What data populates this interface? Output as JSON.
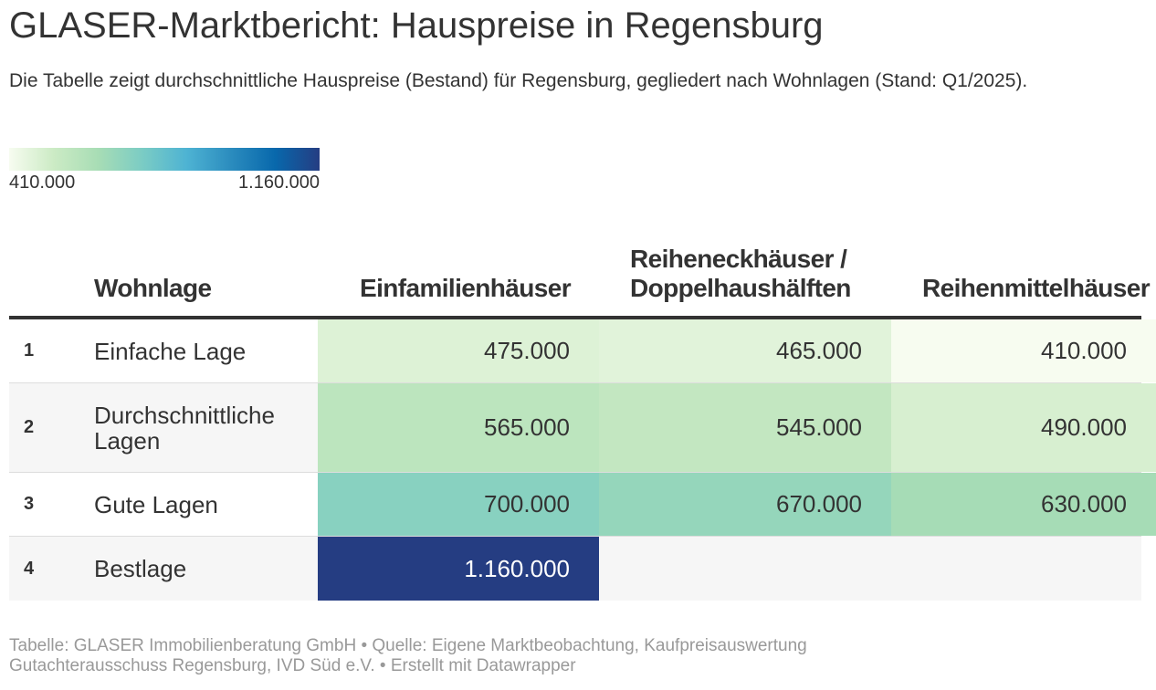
{
  "title": "GLASER-Marktbericht: Hauspreise in Regensburg",
  "subtitle": "Die Tabelle zeigt durchschnittliche Hauspreise (Bestand) für Regensburg, gegliedert nach Wohnlagen (Stand: Q1/2025).",
  "legend": {
    "min_label": "410.000",
    "max_label": "1.160.000",
    "min_value": 410000,
    "max_value": 1160000,
    "colors": [
      "#f7fcf0",
      "#ccebc5",
      "#a8ddb5",
      "#7bccc4",
      "#4eb3d3",
      "#2b8cbe",
      "#0868ac",
      "#253d82"
    ]
  },
  "chart_data": {
    "type": "table",
    "title": "GLASER-Marktbericht: Hauspreise in Regensburg",
    "columns": {
      "lage": "Wohnlage",
      "values": [
        "Einfamilienhäuser",
        "Reiheneckhäuser / Doppelhaushälften",
        "Reihenmittelhäuser"
      ]
    },
    "column_header_lines": {
      "c1": [
        "Reiheneckhäuser /",
        "Doppelhaushälften"
      ]
    },
    "rows": [
      {
        "rank": "1",
        "lage": [
          "Einfache Lage"
        ],
        "values": [
          475000,
          465000,
          410000
        ],
        "labels": [
          "475.000",
          "465.000",
          "410.000"
        ]
      },
      {
        "rank": "2",
        "lage": [
          "Durchschnittliche",
          "Lagen"
        ],
        "values": [
          565000,
          545000,
          490000
        ],
        "labels": [
          "565.000",
          "545.000",
          "490.000"
        ]
      },
      {
        "rank": "3",
        "lage": [
          "Gute Lagen"
        ],
        "values": [
          700000,
          670000,
          630000
        ],
        "labels": [
          "700.000",
          "670.000",
          "630.000"
        ]
      },
      {
        "rank": "4",
        "lage": [
          "Bestlage"
        ],
        "values": [
          1160000,
          null,
          null
        ],
        "labels": [
          "1.160.000",
          "",
          ""
        ]
      }
    ]
  },
  "footer": {
    "line1": "Tabelle: GLASER Immobilienberatung GmbH • Quelle: Eigene Marktbeobachtung, Kaufpreisauswertung",
    "line2": "Gutachterausschuss Regensburg, IVD Süd e.V. • Erstellt mit Datawrapper"
  }
}
